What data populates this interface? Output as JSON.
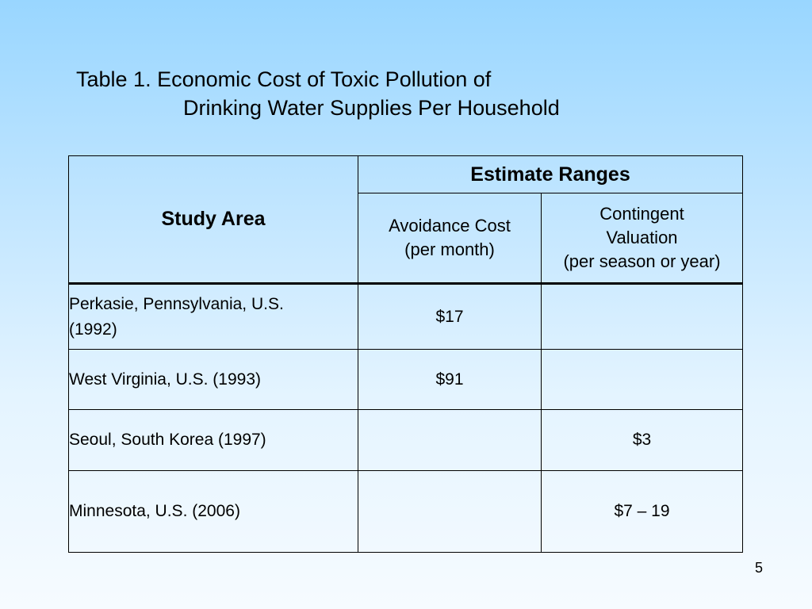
{
  "title": {
    "line1": "Table 1.  Economic Cost of Toxic Pollution of",
    "line2": "Drinking Water Supplies Per Household"
  },
  "table": {
    "study_area_header": "Study Area",
    "estimate_ranges_header": "Estimate Ranges",
    "avoidance_header": {
      "line1": "Avoidance Cost",
      "line2": "(per month)"
    },
    "contingent_header": {
      "line1": "Contingent",
      "line2": "Valuation",
      "line3": "(per season or year)"
    },
    "rows": [
      {
        "area_line1": "Perkasie, Pennsylvania, U.S.",
        "area_line2": "(1992)",
        "avoidance": "$17",
        "contingent": ""
      },
      {
        "area_line1": "West Virginia, U.S.  (1993)",
        "area_line2": "",
        "avoidance": "$91",
        "contingent": ""
      },
      {
        "area_line1": "Seoul, South Korea  (1997)",
        "area_line2": "",
        "avoidance": "",
        "contingent": "$3"
      },
      {
        "area_line1": "Minnesota, U.S. (2006)",
        "area_line2": "",
        "avoidance": "",
        "contingent": "$7 – 19"
      }
    ]
  },
  "page_number": "5"
}
